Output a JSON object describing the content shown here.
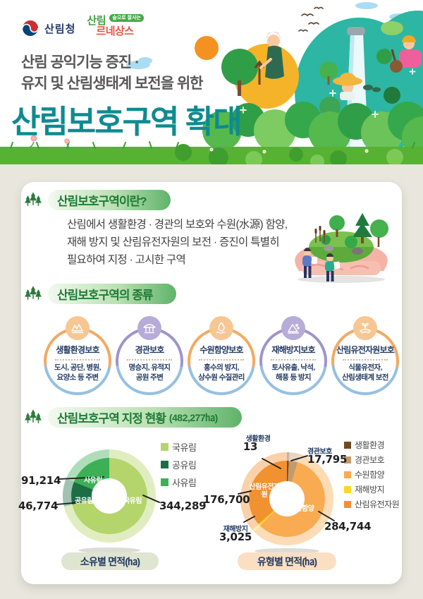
{
  "brand": {
    "title_teal": "#0e8b90",
    "heading_green": "#1e7b35",
    "navy": "#223a63",
    "grass_green": "#57b233"
  },
  "header": {
    "logo_forest_service": "산림청",
    "logo_renaissance_top": "산림",
    "logo_renaissance_bottom": "르네상스",
    "logo_renaissance_badge": "숲으로 잘사는",
    "subtitle_line1": "산림 공익기능 증진 ·",
    "subtitle_line2": "유지 및 산림생태계 보전을 위한",
    "title": "산림보호구역 확대"
  },
  "section1": {
    "heading": "산림보호구역이란?",
    "body_line1": "산림에서 생활환경 · 경관의 보호와 수원(水源) 함양,",
    "body_line2": "재해 방지 및 산림유전자원의 보전 · 증진이 특별히",
    "body_line3": "필요하여 지정 · 고시한 구역"
  },
  "section2": {
    "heading": "산림보호구역의 종류",
    "types": [
      {
        "name": "생활환경보호",
        "desc1": "도시, 공단, 병원,",
        "desc2": "요양소 등 주변",
        "accent": "#f2a964",
        "blue_bottom": "#96c0e0",
        "badge": "#f6c693",
        "icon": "mountain-village-icon"
      },
      {
        "name": "경관보호",
        "desc1": "명승지, 유적지",
        "desc2": "공원 주변",
        "accent": "#9e94cc",
        "blue_bottom": "#96c0e0",
        "badge": "#b7abd9",
        "icon": "pavilion-icon"
      },
      {
        "name": "수원함양보호",
        "desc1": "홍수의 방지,",
        "desc2": "상수원 수질관리",
        "accent": "#f2a964",
        "blue_bottom": "#96c0e0",
        "badge": "#f6c693",
        "icon": "water-drop-icon"
      },
      {
        "name": "재해방지보호",
        "desc1": "토사유출, 낙석,",
        "desc2": "해풍 등 방지",
        "accent": "#9e94cc",
        "blue_bottom": "#96c0e0",
        "badge": "#b7abd9",
        "icon": "rockfall-icon"
      },
      {
        "name": "산림유전자원보호",
        "desc1": "식물유전자,",
        "desc2": "산림생태계 보전",
        "accent": "#f2a964",
        "blue_bottom": "#96c0e0",
        "badge": "#f6c693",
        "icon": "hand-sprout-icon"
      }
    ]
  },
  "section3": {
    "heading": "산림보호구역 지정 현황",
    "heading_total": "(482,277㏊)",
    "left_caption": "소유별 면적(㏊)",
    "right_caption": "유형별 면적(㏊)"
  },
  "chart_data": [
    {
      "type": "pie",
      "title": "소유별 면적(㏊)",
      "unit": "ha",
      "total": 482277,
      "donut": true,
      "legend_position": "top-right",
      "slices": [
        {
          "label": "국유림",
          "value": 344289,
          "display": "344,289",
          "color": "#b4d56b"
        },
        {
          "label": "공유림",
          "value": 46774,
          "display": "46,774",
          "color": "#1c6f45"
        },
        {
          "label": "사유림",
          "value": 91214,
          "display": "91,214",
          "color": "#3db055"
        }
      ]
    },
    {
      "type": "pie",
      "title": "유형별 면적(㏊)",
      "unit": "ha",
      "total": 482277,
      "donut": true,
      "legend_position": "right",
      "slices": [
        {
          "label": "생활환경",
          "value": 13,
          "display": "13",
          "color": "#6f4a21"
        },
        {
          "label": "경관보호",
          "value": 17795,
          "display": "17,795",
          "color": "#c39a6b"
        },
        {
          "label": "수원함양",
          "value": 284744,
          "display": "284,744",
          "color": "#f8ab50"
        },
        {
          "label": "재해방지",
          "value": 3025,
          "display": "3,025",
          "color": "#ffd62e"
        },
        {
          "label": "산림유전자원",
          "value": 176700,
          "display": "176,700",
          "color": "#f2912f"
        }
      ]
    }
  ]
}
